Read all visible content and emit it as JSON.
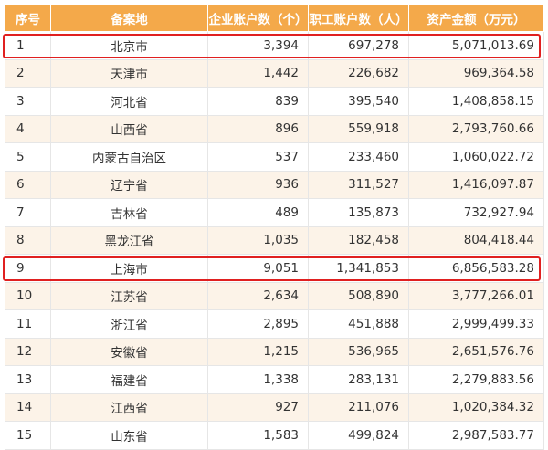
{
  "table": {
    "headers": [
      "序号",
      "备案地",
      "企业账户数（个）",
      "职工账户数（人）",
      "资产金额（万元）"
    ],
    "rows": [
      {
        "idx": "1",
        "region": "北京市",
        "enterprises": "3,394",
        "employees": "697,278",
        "assets": "5,071,013.69"
      },
      {
        "idx": "2",
        "region": "天津市",
        "enterprises": "1,442",
        "employees": "226,682",
        "assets": "969,364.58"
      },
      {
        "idx": "3",
        "region": "河北省",
        "enterprises": "839",
        "employees": "395,540",
        "assets": "1,408,858.15"
      },
      {
        "idx": "4",
        "region": "山西省",
        "enterprises": "896",
        "employees": "559,918",
        "assets": "2,793,760.66"
      },
      {
        "idx": "5",
        "region": "内蒙古自治区",
        "enterprises": "537",
        "employees": "233,460",
        "assets": "1,060,022.72"
      },
      {
        "idx": "6",
        "region": "辽宁省",
        "enterprises": "936",
        "employees": "311,527",
        "assets": "1,416,097.87"
      },
      {
        "idx": "7",
        "region": "吉林省",
        "enterprises": "489",
        "employees": "135,873",
        "assets": "732,927.94"
      },
      {
        "idx": "8",
        "region": "黑龙江省",
        "enterprises": "1,035",
        "employees": "182,458",
        "assets": "804,418.44"
      },
      {
        "idx": "9",
        "region": "上海市",
        "enterprises": "9,051",
        "employees": "1,341,853",
        "assets": "6,856,583.28"
      },
      {
        "idx": "10",
        "region": "江苏省",
        "enterprises": "2,634",
        "employees": "508,890",
        "assets": "3,777,266.01"
      },
      {
        "idx": "11",
        "region": "浙江省",
        "enterprises": "2,895",
        "employees": "451,888",
        "assets": "2,999,499.33"
      },
      {
        "idx": "12",
        "region": "安徽省",
        "enterprises": "1,215",
        "employees": "536,965",
        "assets": "2,651,576.76"
      },
      {
        "idx": "13",
        "region": "福建省",
        "enterprises": "1,338",
        "employees": "283,131",
        "assets": "2,279,883.56"
      },
      {
        "idx": "14",
        "region": "江西省",
        "enterprises": "927",
        "employees": "211,076",
        "assets": "1,020,384.32"
      },
      {
        "idx": "15",
        "region": "山东省",
        "enterprises": "1,583",
        "employees": "499,824",
        "assets": "2,987,583.77"
      }
    ],
    "highlighted_rows": [
      "1",
      "9"
    ]
  },
  "colors": {
    "header_bg": "#f4a94a",
    "header_text": "#ffffff",
    "alt_row_bg": "#fcf3e8",
    "highlight_border": "#e02020"
  }
}
